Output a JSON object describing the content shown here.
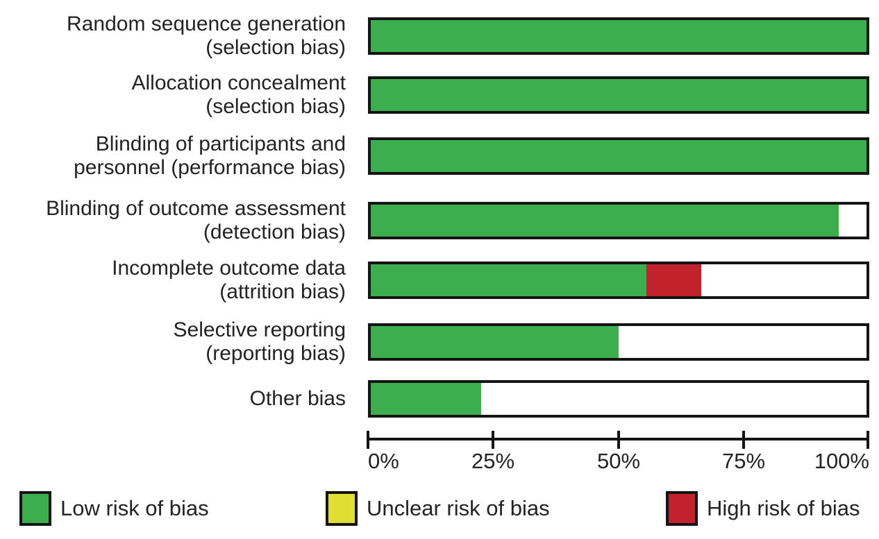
{
  "chart_data": {
    "type": "bar",
    "orientation": "horizontal",
    "stacked": true,
    "unit": "percent",
    "xlim": [
      0,
      100
    ],
    "grid": false,
    "x_ticks": [
      "0%",
      "25%",
      "50%",
      "75%",
      "100%"
    ],
    "colors": {
      "low": "#3CAE4D",
      "unclear": "#E0DE33",
      "high": "#C2222B"
    },
    "rows": [
      {
        "label_line1": "Random sequence generation",
        "label_line2": "(selection bias)",
        "segments": [
          {
            "risk": "low",
            "value": 100
          }
        ]
      },
      {
        "label_line1": "Allocation concealment",
        "label_line2": "(selection bias)",
        "segments": [
          {
            "risk": "low",
            "value": 100
          }
        ]
      },
      {
        "label_line1": "Blinding of participants and",
        "label_line2": "personnel (performance bias)",
        "segments": [
          {
            "risk": "low",
            "value": 100
          }
        ]
      },
      {
        "label_line1": "Blinding of outcome assessment",
        "label_line2": "(detection bias)",
        "segments": [
          {
            "risk": "low",
            "value": 94.4
          }
        ]
      },
      {
        "label_line1": "Incomplete outcome data",
        "label_line2": "(attrition bias)",
        "segments": [
          {
            "risk": "low",
            "value": 55.6
          },
          {
            "risk": "high",
            "value": 11.1
          }
        ]
      },
      {
        "label_line1": "Selective reporting",
        "label_line2": "(reporting bias)",
        "segments": [
          {
            "risk": "low",
            "value": 50
          }
        ]
      },
      {
        "label_line1": "Other bias",
        "label_line2": "",
        "segments": [
          {
            "risk": "low",
            "value": 22.2
          }
        ]
      }
    ],
    "legend": [
      {
        "risk": "low",
        "label": "Low risk of bias"
      },
      {
        "risk": "unclear",
        "label": "Unclear risk of bias"
      },
      {
        "risk": "high",
        "label": "High risk of bias"
      }
    ]
  }
}
